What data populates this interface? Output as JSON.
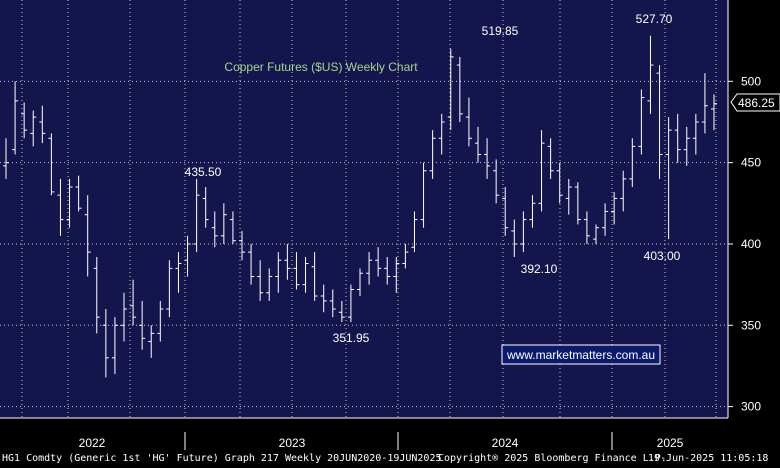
{
  "chart_data": {
    "type": "ohlc",
    "title": "Copper Futures ($US) Weekly Chart",
    "xlabel": "",
    "ylabel": "",
    "ylim": [
      293,
      550
    ],
    "y_ticks": [
      300,
      350,
      400,
      450,
      500
    ],
    "x_ticks": [
      "2022",
      "2023",
      "2024",
      "2025"
    ],
    "last_price": "486.25",
    "grid": true,
    "annotations": [
      {
        "text": "519.85",
        "x": "2024-03",
        "y": 519.85
      },
      {
        "text": "527.70",
        "x": "2025-03",
        "y": 527.7
      },
      {
        "text": "435.50",
        "x": "2023-01",
        "y": 435.5
      },
      {
        "text": "351.95",
        "x": "2023-06",
        "y": 351.95
      },
      {
        "text": "392.10",
        "x": "2024-07",
        "y": 392.1
      },
      {
        "text": "403.00",
        "x": "2025-04",
        "y": 403.0
      }
    ],
    "watermark": "www.marketmatters.com.au",
    "series": [
      {
        "values": [
          [
            448,
            465,
            440,
            450
          ],
          [
            458,
            500,
            455,
            488
          ],
          [
            480,
            487,
            465,
            470
          ],
          [
            468,
            482,
            460,
            478
          ],
          [
            475,
            485,
            462,
            468
          ],
          [
            465,
            468,
            430,
            432
          ],
          [
            430,
            440,
            405,
            415
          ],
          [
            415,
            440,
            410,
            435
          ],
          [
            435,
            442,
            420,
            422
          ],
          [
            418,
            430,
            380,
            395
          ],
          [
            385,
            392,
            345,
            355
          ],
          [
            350,
            360,
            318,
            330
          ],
          [
            330,
            355,
            320,
            350
          ],
          [
            350,
            370,
            340,
            360
          ],
          [
            362,
            378,
            350,
            355
          ],
          [
            350,
            365,
            335,
            342
          ],
          [
            340,
            350,
            330,
            345
          ],
          [
            345,
            365,
            340,
            360
          ],
          [
            360,
            390,
            355,
            385
          ],
          [
            385,
            395,
            370,
            388
          ],
          [
            390,
            405,
            380,
            400
          ],
          [
            400,
            440,
            395,
            430
          ],
          [
            428,
            435,
            410,
            415
          ],
          [
            410,
            420,
            398,
            405
          ],
          [
            405,
            425,
            400,
            418
          ],
          [
            415,
            420,
            400,
            402
          ],
          [
            402,
            408,
            390,
            395
          ],
          [
            395,
            400,
            375,
            380
          ],
          [
            380,
            390,
            365,
            370
          ],
          [
            370,
            385,
            365,
            380
          ],
          [
            380,
            395,
            370,
            390
          ],
          [
            390,
            400,
            378,
            385
          ],
          [
            385,
            395,
            372,
            375
          ],
          [
            375,
            392,
            370,
            388
          ],
          [
            386,
            395,
            365,
            368
          ],
          [
            368,
            375,
            358,
            365
          ],
          [
            365,
            372,
            355,
            360
          ],
          [
            358,
            365,
            352,
            355
          ],
          [
            355,
            375,
            352,
            372
          ],
          [
            372,
            385,
            368,
            382
          ],
          [
            382,
            395,
            375,
            390
          ],
          [
            390,
            398,
            380,
            385
          ],
          [
            385,
            392,
            375,
            380
          ],
          [
            380,
            392,
            370,
            388
          ],
          [
            388,
            400,
            385,
            395
          ],
          [
            398,
            420,
            395,
            415
          ],
          [
            415,
            450,
            410,
            445
          ],
          [
            445,
            470,
            440,
            465
          ],
          [
            465,
            480,
            455,
            475
          ],
          [
            478,
            520,
            470,
            515
          ],
          [
            510,
            515,
            475,
            480
          ],
          [
            478,
            490,
            460,
            465
          ],
          [
            462,
            472,
            450,
            455
          ],
          [
            455,
            465,
            440,
            448
          ],
          [
            445,
            452,
            425,
            430
          ],
          [
            428,
            435,
            405,
            410
          ],
          [
            408,
            415,
            392,
            400
          ],
          [
            400,
            420,
            395,
            415
          ],
          [
            415,
            430,
            410,
            425
          ],
          [
            425,
            470,
            420,
            462
          ],
          [
            460,
            465,
            440,
            445
          ],
          [
            445,
            450,
            425,
            430
          ],
          [
            428,
            440,
            418,
            435
          ],
          [
            435,
            438,
            412,
            415
          ],
          [
            415,
            420,
            400,
            405
          ],
          [
            403,
            412,
            400,
            410
          ],
          [
            410,
            425,
            405,
            420
          ],
          [
            420,
            432,
            412,
            428
          ],
          [
            428,
            445,
            420,
            440
          ],
          [
            440,
            465,
            435,
            460
          ],
          [
            460,
            495,
            455,
            490
          ],
          [
            488,
            528,
            480,
            510
          ],
          [
            505,
            510,
            440,
            455
          ],
          [
            455,
            478,
            403,
            470
          ],
          [
            470,
            480,
            450,
            458
          ],
          [
            458,
            472,
            448,
            465
          ],
          [
            465,
            480,
            455,
            475
          ],
          [
            475,
            505,
            468,
            485
          ],
          [
            483,
            492,
            470,
            486.25
          ]
        ]
      }
    ]
  },
  "footer": {
    "left": "HG1 Comdty (Generic 1st 'HG' Future) Graph 217  Weekly 20JUN2020-19JUN2025",
    "copyright": "Copyright® 2025 Bloomberg Finance L.P.",
    "timestamp": "19-Jun-2025 11:05:18"
  },
  "colors": {
    "plot_bg": "#15154e",
    "grid": "#c8c8c8",
    "bars": "#ffffff",
    "title": "#9fd88a",
    "axis_bg": "#000000",
    "watermark_bg": "#0c1a6e"
  }
}
